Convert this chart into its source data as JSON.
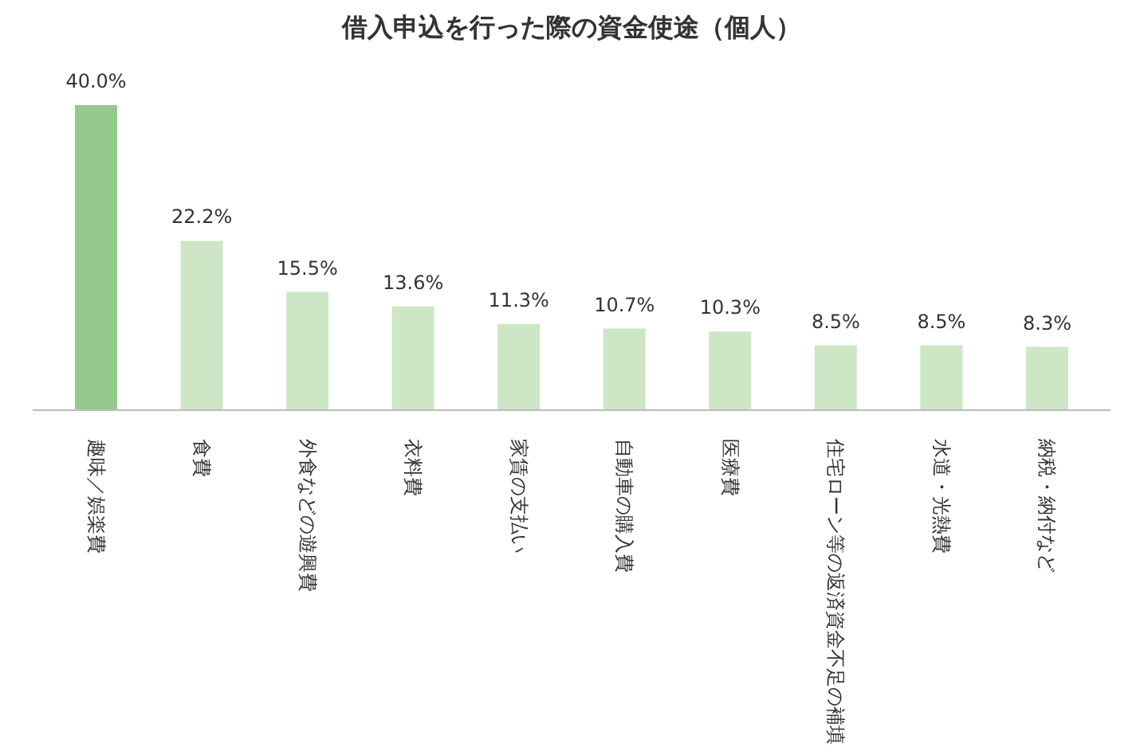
{
  "chart_data": {
    "type": "bar",
    "title": "借入申込を行った際の資金使途（個人）",
    "categories": [
      "趣味／娯楽費",
      "食費",
      "外食などの遊興費",
      "衣料費",
      "家賃の支払い",
      "自動車の購入費",
      "医療費",
      "住宅ローン等の返済資金不足の補填",
      "水道・光熱費",
      "納税・納付など"
    ],
    "values": [
      40.0,
      22.2,
      15.5,
      13.6,
      11.3,
      10.7,
      10.3,
      8.5,
      8.5,
      8.3
    ],
    "value_labels": [
      "40.0%",
      "22.2%",
      "15.5%",
      "13.6%",
      "11.3%",
      "10.7%",
      "10.3%",
      "8.5%",
      "8.5%",
      "8.3%"
    ],
    "colors": [
      "#93c98b",
      "#cde6c6",
      "#cde6c6",
      "#cde6c6",
      "#cde6c6",
      "#cde6c6",
      "#cde6c6",
      "#cde6c6",
      "#cde6c6",
      "#cde6c6"
    ]
  }
}
